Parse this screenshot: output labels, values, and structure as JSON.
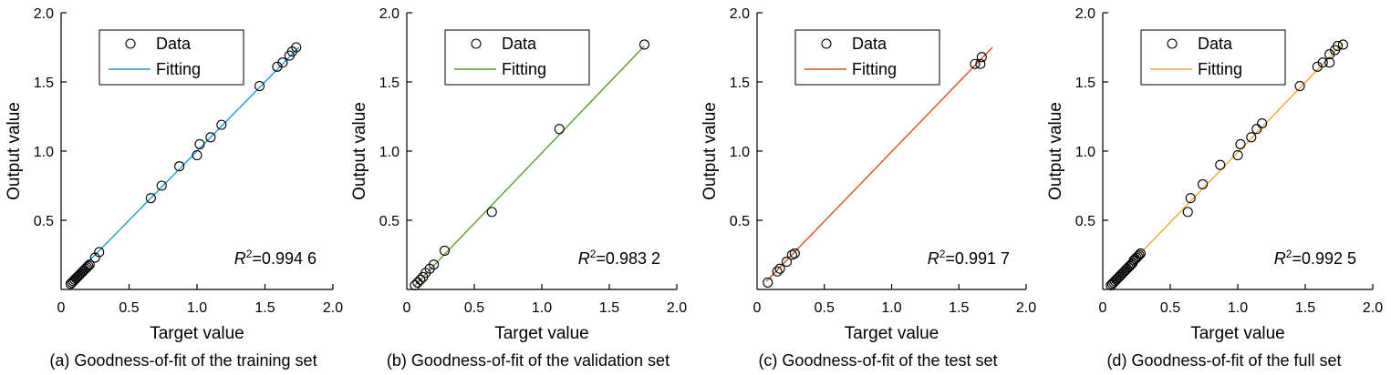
{
  "chart_data": [
    {
      "type": "scatter",
      "caption": "(a) Goodness-of-fit of the training set",
      "xlabel": "Target value",
      "ylabel": "Output value",
      "xlim": [
        0,
        2.0
      ],
      "ylim": [
        0,
        2.0
      ],
      "xticks": [
        "0",
        "0.5",
        "1.0",
        "1.5",
        "2.0"
      ],
      "yticks": [
        "0.5",
        "1.0",
        "1.5",
        "2.0"
      ],
      "legend": {
        "position": "top-left",
        "entries": [
          "Data",
          "Fitting"
        ]
      },
      "r2_label": "R",
      "r2_sup": "2",
      "r2_value": "=0.994 6",
      "fit_color": "#1f9bd7",
      "fit_line": [
        [
          0.07,
          0.07
        ],
        [
          1.75,
          1.75
        ]
      ],
      "series": [
        {
          "name": "Data",
          "points": [
            [
              0.07,
              0.04
            ],
            [
              0.08,
              0.05
            ],
            [
              0.09,
              0.06
            ],
            [
              0.1,
              0.07
            ],
            [
              0.11,
              0.08
            ],
            [
              0.12,
              0.09
            ],
            [
              0.13,
              0.1
            ],
            [
              0.14,
              0.11
            ],
            [
              0.15,
              0.12
            ],
            [
              0.16,
              0.13
            ],
            [
              0.17,
              0.14
            ],
            [
              0.18,
              0.15
            ],
            [
              0.19,
              0.16
            ],
            [
              0.2,
              0.17
            ],
            [
              0.21,
              0.18
            ],
            [
              0.25,
              0.23
            ],
            [
              0.28,
              0.27
            ],
            [
              0.66,
              0.66
            ],
            [
              0.74,
              0.75
            ],
            [
              0.87,
              0.89
            ],
            [
              1.0,
              0.97
            ],
            [
              1.02,
              1.05
            ],
            [
              1.1,
              1.1
            ],
            [
              1.18,
              1.19
            ],
            [
              1.46,
              1.47
            ],
            [
              1.59,
              1.61
            ],
            [
              1.63,
              1.64
            ],
            [
              1.68,
              1.69
            ],
            [
              1.7,
              1.72
            ],
            [
              1.73,
              1.75
            ]
          ]
        }
      ]
    },
    {
      "type": "scatter",
      "caption": "(b) Goodness-of-fit of the validation set",
      "xlabel": "Target value",
      "ylabel": "Output value",
      "xlim": [
        0,
        2.0
      ],
      "ylim": [
        0,
        2.0
      ],
      "xticks": [
        "0",
        "0.5",
        "1.0",
        "1.5",
        "2.0"
      ],
      "yticks": [
        "0.5",
        "1.0",
        "1.5",
        "2.0"
      ],
      "legend": {
        "position": "top-left",
        "entries": [
          "Data",
          "Fitting"
        ]
      },
      "r2_label": "R",
      "r2_sup": "2",
      "r2_value": "=0.983 2",
      "fit_color": "#5a9e2f",
      "fit_line": [
        [
          0.06,
          0.03
        ],
        [
          1.76,
          1.76
        ]
      ],
      "series": [
        {
          "name": "Data",
          "points": [
            [
              0.06,
              0.03
            ],
            [
              0.08,
              0.05
            ],
            [
              0.1,
              0.07
            ],
            [
              0.12,
              0.09
            ],
            [
              0.14,
              0.12
            ],
            [
              0.17,
              0.15
            ],
            [
              0.2,
              0.18
            ],
            [
              0.28,
              0.28
            ],
            [
              0.63,
              0.56
            ],
            [
              1.13,
              1.16
            ],
            [
              1.76,
              1.77
            ]
          ]
        }
      ]
    },
    {
      "type": "scatter",
      "caption": "(c) Goodness-of-fit of the test set",
      "xlabel": "Target value",
      "ylabel": "Output value",
      "xlim": [
        0,
        2.0
      ],
      "ylim": [
        0,
        2.0
      ],
      "xticks": [
        "0",
        "0.5",
        "1.0",
        "1.5",
        "2.0"
      ],
      "yticks": [
        "0.5",
        "1.0",
        "1.5",
        "2.0"
      ],
      "legend": {
        "position": "top-left",
        "entries": [
          "Data",
          "Fitting"
        ]
      },
      "r2_label": "R",
      "r2_sup": "2",
      "r2_value": "=0.991 7",
      "fit_color": "#d9501e",
      "fit_line": [
        [
          0.07,
          0.06
        ],
        [
          1.75,
          1.75
        ]
      ],
      "series": [
        {
          "name": "Data",
          "points": [
            [
              0.08,
              0.05
            ],
            [
              0.15,
              0.13
            ],
            [
              0.17,
              0.15
            ],
            [
              0.22,
              0.2
            ],
            [
              0.26,
              0.25
            ],
            [
              0.28,
              0.26
            ],
            [
              1.62,
              1.63
            ],
            [
              1.66,
              1.63
            ],
            [
              1.67,
              1.68
            ]
          ]
        }
      ]
    },
    {
      "type": "scatter",
      "caption": "(d) Goodness-of-fit of the full set",
      "xlabel": "Target value",
      "ylabel": "Output value",
      "xlim": [
        0,
        2.0
      ],
      "ylim": [
        0,
        2.0
      ],
      "xticks": [
        "0",
        "0.5",
        "1.0",
        "1.5",
        "2.0"
      ],
      "yticks": [
        "0.5",
        "1.0",
        "1.5",
        "2.0"
      ],
      "legend": {
        "position": "top-left",
        "entries": [
          "Data",
          "Fitting"
        ]
      },
      "r2_label": "R",
      "r2_sup": "2",
      "r2_value": "=0.992 5",
      "fit_color": "#f0a830",
      "fit_line": [
        [
          0.06,
          0.04
        ],
        [
          1.78,
          1.78
        ]
      ],
      "series": [
        {
          "name": "Data",
          "points": [
            [
              0.06,
              0.03
            ],
            [
              0.07,
              0.04
            ],
            [
              0.08,
              0.05
            ],
            [
              0.09,
              0.06
            ],
            [
              0.1,
              0.07
            ],
            [
              0.11,
              0.08
            ],
            [
              0.12,
              0.09
            ],
            [
              0.13,
              0.1
            ],
            [
              0.14,
              0.11
            ],
            [
              0.15,
              0.12
            ],
            [
              0.16,
              0.13
            ],
            [
              0.17,
              0.14
            ],
            [
              0.18,
              0.15
            ],
            [
              0.19,
              0.16
            ],
            [
              0.2,
              0.17
            ],
            [
              0.21,
              0.18
            ],
            [
              0.22,
              0.19
            ],
            [
              0.23,
              0.21
            ],
            [
              0.24,
              0.22
            ],
            [
              0.25,
              0.23
            ],
            [
              0.26,
              0.24
            ],
            [
              0.27,
              0.25
            ],
            [
              0.28,
              0.26
            ],
            [
              0.63,
              0.56
            ],
            [
              0.65,
              0.66
            ],
            [
              0.74,
              0.76
            ],
            [
              0.87,
              0.9
            ],
            [
              1.0,
              0.97
            ],
            [
              1.02,
              1.05
            ],
            [
              1.1,
              1.1
            ],
            [
              1.14,
              1.16
            ],
            [
              1.18,
              1.2
            ],
            [
              1.46,
              1.47
            ],
            [
              1.59,
              1.61
            ],
            [
              1.63,
              1.64
            ],
            [
              1.68,
              1.64
            ],
            [
              1.68,
              1.7
            ],
            [
              1.72,
              1.73
            ],
            [
              1.74,
              1.76
            ],
            [
              1.78,
              1.77
            ]
          ]
        }
      ]
    }
  ]
}
